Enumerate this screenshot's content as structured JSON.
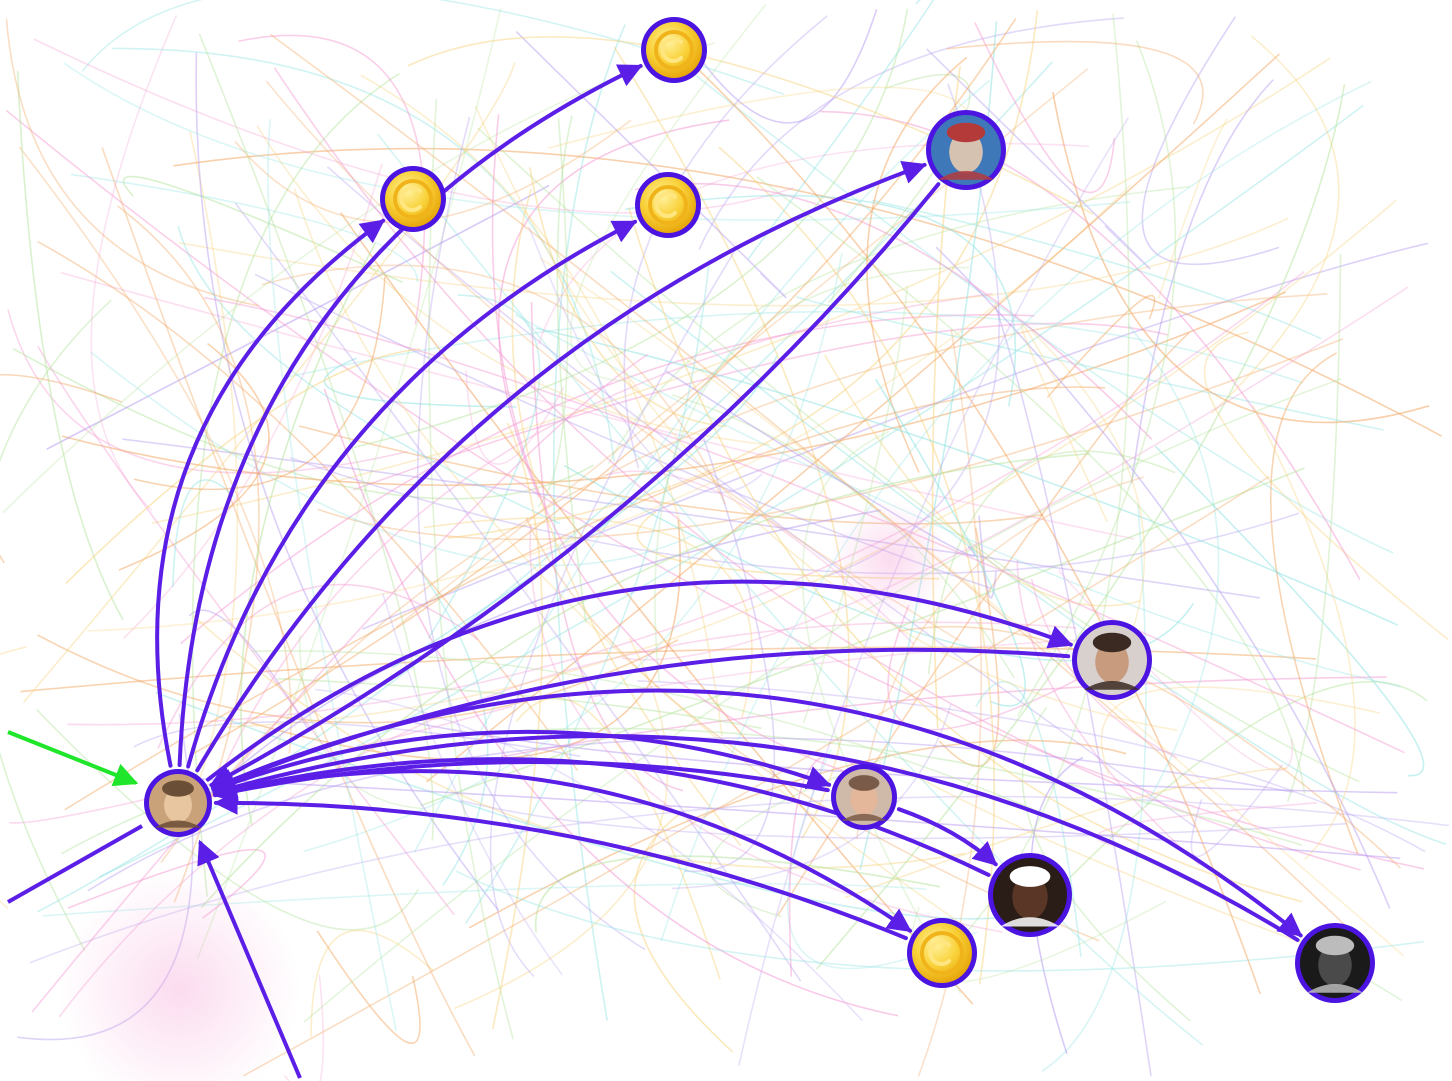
{
  "colors": {
    "edge_primary": "#5a1ee6",
    "edge_incoming": "#1fe62a",
    "node_ring": "#4b14e0",
    "coin_fill": "#f7c21e",
    "coin_core": "#ffde55",
    "background_tints": [
      "#f2a35c",
      "#b59af0",
      "#8fe2e2",
      "#f49ad2",
      "#b4e39c",
      "#f7d27a"
    ]
  },
  "nodes": [
    {
      "id": "hub",
      "kind": "person",
      "icon": "blonde-person-avatar"
    },
    {
      "id": "coin-top",
      "kind": "coin",
      "icon": "coin-icon"
    },
    {
      "id": "coin-mid-l",
      "kind": "coin",
      "icon": "coin-icon"
    },
    {
      "id": "coin-mid-r",
      "kind": "coin",
      "icon": "coin-icon"
    },
    {
      "id": "cap-person",
      "kind": "person",
      "icon": "cap-person-avatar"
    },
    {
      "id": "beard-man",
      "kind": "person",
      "icon": "bearded-man-avatar"
    },
    {
      "id": "old-man",
      "kind": "person",
      "icon": "older-man-avatar"
    },
    {
      "id": "smile-man",
      "kind": "person",
      "icon": "smiling-man-avatar"
    },
    {
      "id": "coin-low",
      "kind": "coin",
      "icon": "coin-icon"
    },
    {
      "id": "dark-photo",
      "kind": "person",
      "icon": "dark-photo-avatar"
    }
  ],
  "edges": [
    {
      "from": "hub",
      "to": "coin-top"
    },
    {
      "from": "hub",
      "to": "coin-mid-l"
    },
    {
      "from": "hub",
      "to": "coin-mid-r"
    },
    {
      "from": "hub",
      "to": "cap-person"
    },
    {
      "from": "cap-person",
      "to": "hub"
    },
    {
      "from": "hub",
      "to": "beard-man"
    },
    {
      "from": "beard-man",
      "to": "hub"
    },
    {
      "from": "hub",
      "to": "old-man"
    },
    {
      "from": "old-man",
      "to": "hub"
    },
    {
      "from": "old-man",
      "to": "smile-man"
    },
    {
      "from": "hub",
      "to": "coin-low"
    },
    {
      "from": "coin-low",
      "to": "hub"
    },
    {
      "from": "smile-man",
      "to": "hub"
    },
    {
      "from": "hub",
      "to": "dark-photo"
    },
    {
      "from": "dark-photo",
      "to": "hub"
    }
  ]
}
